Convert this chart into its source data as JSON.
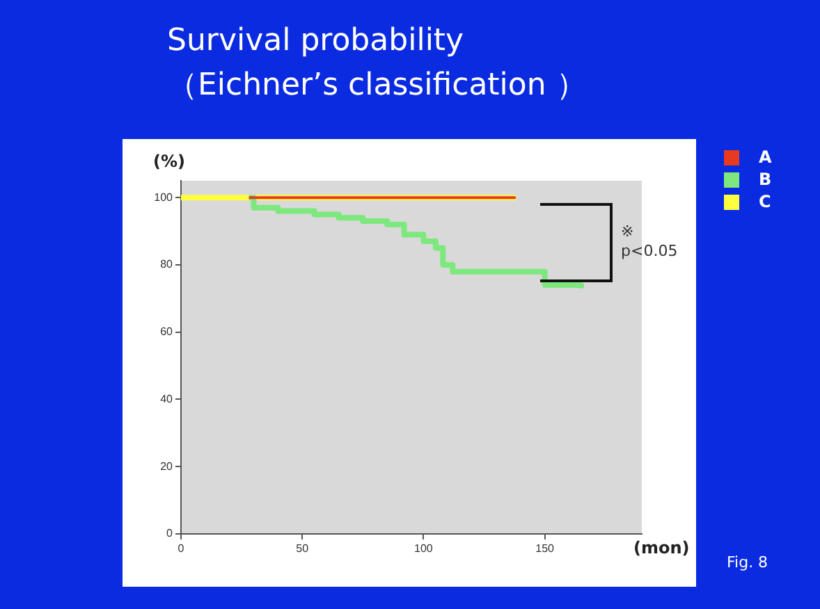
{
  "chart_data": {
    "type": "step",
    "title": "Survival probability\n（Eichner’s classification ）",
    "xlabel": "(mon)",
    "ylabel": "(%)",
    "xlim": [
      0,
      190
    ],
    "xticks": [
      0,
      50,
      100,
      150
    ],
    "ylim": [
      0,
      105
    ],
    "yticks": [
      0,
      20,
      40,
      60,
      80,
      100
    ],
    "grid": false,
    "legend": "right",
    "marker": "none",
    "series": [
      {
        "name": "A",
        "color": "#e83a20",
        "x": [
          28,
          138
        ],
        "values": [
          100,
          100
        ]
      },
      {
        "name": "B",
        "color": "#7de87d",
        "x": [
          28,
          30,
          40,
          55,
          65,
          75,
          85,
          92,
          100,
          105,
          108,
          112,
          148,
          150,
          165
        ],
        "values": [
          100,
          97,
          96,
          95,
          94,
          93,
          92,
          89,
          87,
          85,
          80,
          78,
          78,
          74,
          73
        ]
      },
      {
        "name": "C",
        "color": "#ffff40",
        "x": [
          0,
          28,
          138
        ],
        "values": [
          100,
          100,
          100
        ]
      }
    ],
    "annotations": [
      "※\np<0.05",
      "Fig. 8"
    ]
  }
}
